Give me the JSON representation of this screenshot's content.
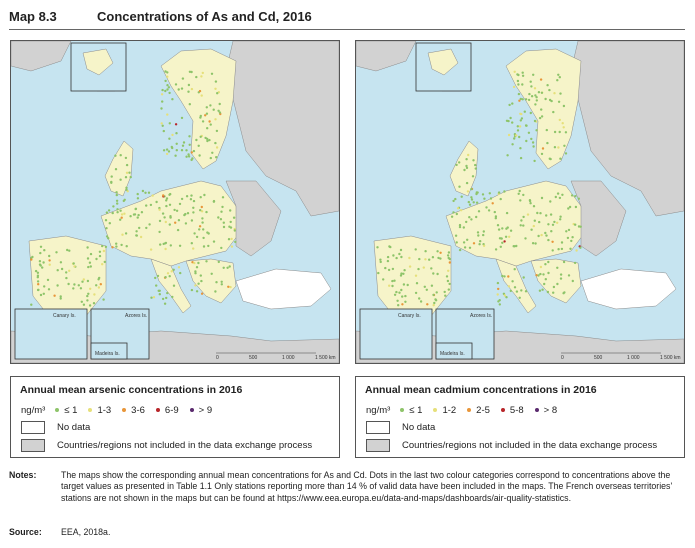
{
  "header": {
    "map_number": "Map 8.3",
    "title": "Concentrations of As and Cd, 2016"
  },
  "colors": {
    "sea": "#c6e4f0",
    "included_land": "#f6f4c9",
    "excluded_land": "#d2d2d2",
    "no_data_land": "#ffffff",
    "border": "#8a8a8a"
  },
  "maps": [
    {
      "id": "arsenic",
      "inset_labels": {
        "canary": "Canary Is.",
        "azores": "Azores Is.",
        "madeira": "Madeira Is."
      },
      "scale_labels": [
        "0",
        "500",
        "1 000",
        "1 500 km"
      ],
      "legend": {
        "title": "Annual mean arsenic concentrations in 2016",
        "unit": "ng/m³",
        "categories": [
          {
            "label": "≤ 1",
            "color": "#8ec46a"
          },
          {
            "label": "1-3",
            "color": "#e6e07a"
          },
          {
            "label": "3-6",
            "color": "#e8963a"
          },
          {
            "label": "6-9",
            "color": "#b8252a"
          },
          {
            "label": "> 9",
            "color": "#5a2a6e"
          }
        ],
        "no_data": "No data",
        "excluded": "Countries/regions not included in the data exchange process"
      }
    },
    {
      "id": "cadmium",
      "inset_labels": {
        "canary": "Canary Is.",
        "azores": "Azores Is.",
        "madeira": "Madeira Is."
      },
      "scale_labels": [
        "0",
        "500",
        "1 000",
        "1 500 km"
      ],
      "legend": {
        "title": "Annual mean cadmium concentrations in 2016",
        "unit": "ng/m³",
        "categories": [
          {
            "label": "≤ 1",
            "color": "#8ec46a"
          },
          {
            "label": "1-2",
            "color": "#e6e07a"
          },
          {
            "label": "2-5",
            "color": "#e8963a"
          },
          {
            "label": "5-8",
            "color": "#b8252a"
          },
          {
            "label": "> 8",
            "color": "#5a2a6e"
          }
        ],
        "no_data": "No data",
        "excluded": "Countries/regions not included in the data exchange process"
      }
    }
  ],
  "notes": {
    "label": "Notes:",
    "text": "The maps show the corresponding annual mean concentrations for As and Cd. Dots in the last two colour categories correspond to concentrations above the target values as presented in Table 1.1 Only stations reporting more than 14 % of valid data have been included in the maps. The French overseas territories' stations are not shown in the maps but can be found at https://www.eea.europa.eu/data-and-maps/dashboards/air-quality-statistics."
  },
  "source": {
    "label": "Source:",
    "text": "EEA, 2018a."
  }
}
